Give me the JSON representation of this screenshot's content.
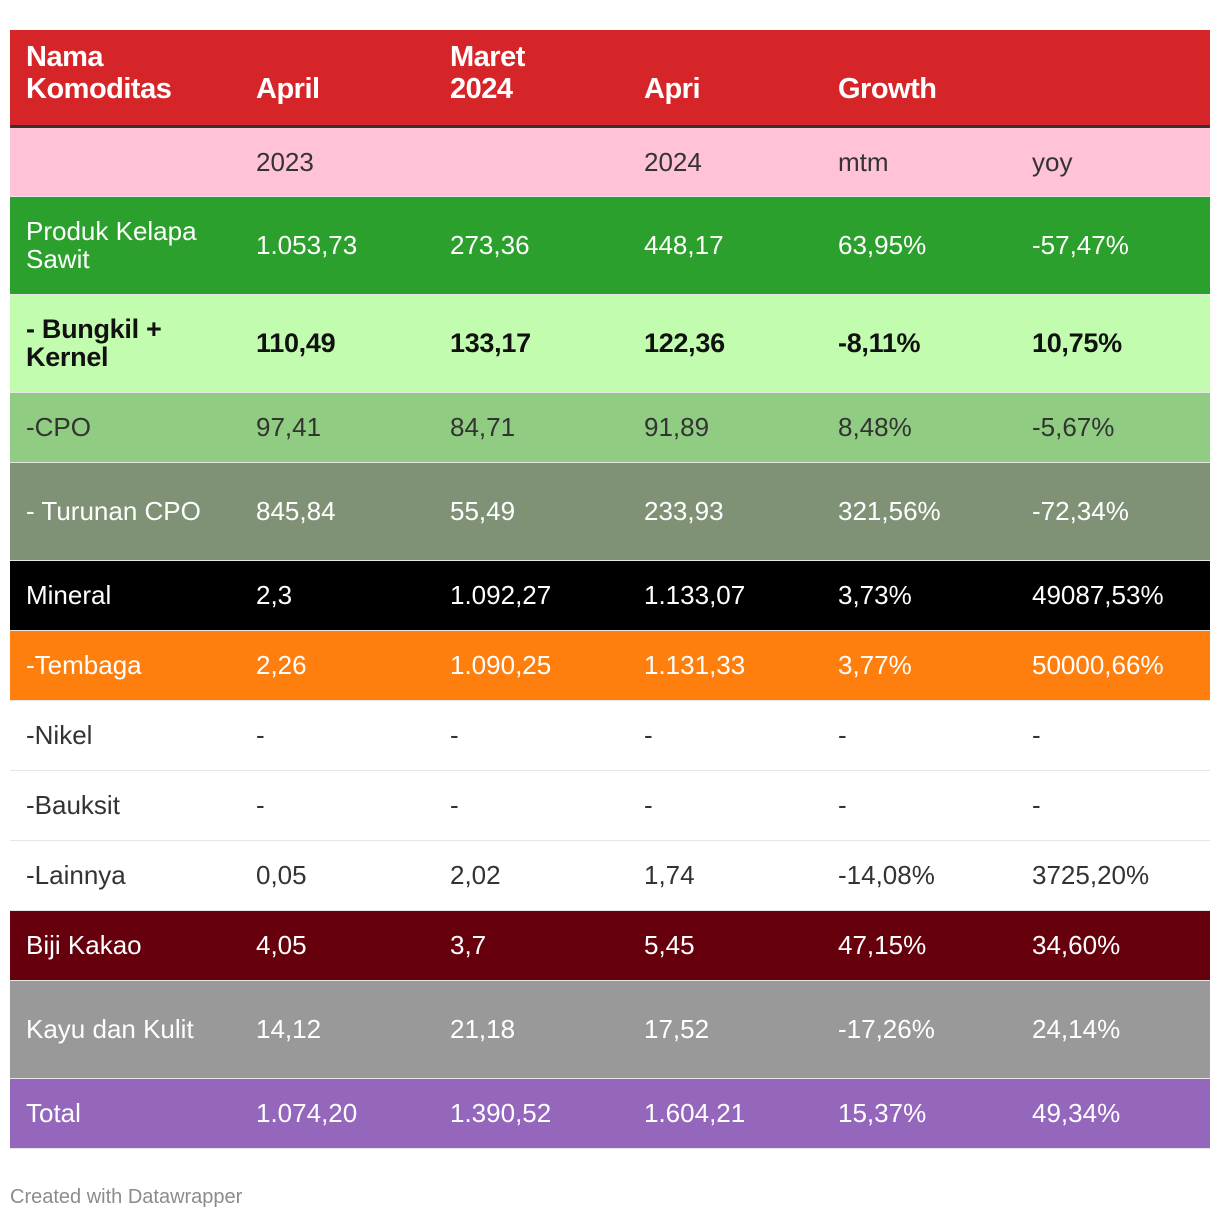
{
  "chart_data": {
    "type": "table",
    "columns": [
      [
        "Nama",
        "Komoditas"
      ],
      [
        "",
        "April"
      ],
      [
        "Maret",
        "2024"
      ],
      [
        "",
        "Apri"
      ],
      [
        "",
        "Growth"
      ],
      [
        "",
        ""
      ]
    ],
    "rows": [
      {
        "cells": [
          "",
          "2023",
          "",
          "2024",
          "mtm",
          "yoy"
        ],
        "bg": "#ffc2d6",
        "fg": "#333333",
        "bold": false,
        "height": 70
      },
      {
        "cells": [
          "Produk Kelapa Sawit",
          "1.053,73",
          "273,36",
          "448,17",
          "63,95%",
          "-57,47%"
        ],
        "bg": "#2ca02c",
        "fg": "#ffffff",
        "bold": false,
        "height": 98
      },
      {
        "cells": [
          "- Bungkil + Kernel",
          "110,49",
          "133,17",
          "122,36",
          "-8,11%",
          "10,75%"
        ],
        "bg": "#c2fcae",
        "fg": "#111111",
        "bold": true,
        "height": 98
      },
      {
        "cells": [
          "-CPO",
          "97,41",
          "84,71",
          "91,89",
          "8,48%",
          "-5,67%"
        ],
        "bg": "#90cc82",
        "fg": "#333333",
        "bold": false,
        "height": 70
      },
      {
        "cells": [
          "- Turunan CPO",
          "845,84",
          "55,49",
          "233,93",
          "321,56%",
          "-72,34%"
        ],
        "bg": "#7f9276",
        "fg": "#ffffff",
        "bold": false,
        "height": 98
      },
      {
        "cells": [
          "Mineral",
          "2,3",
          "1.092,27",
          "1.133,07",
          "3,73%",
          "49087,53%"
        ],
        "bg": "#000000",
        "fg": "#ffffff",
        "bold": false,
        "height": 70
      },
      {
        "cells": [
          "-Tembaga",
          "2,26",
          "1.090,25",
          "1.131,33",
          "3,77%",
          "50000,66%"
        ],
        "bg": "#ff7f0e",
        "fg": "#ffffff",
        "bold": false,
        "height": 70
      },
      {
        "cells": [
          "-Nikel",
          "-",
          "-",
          "-",
          "-",
          "-"
        ],
        "bg": "#ffffff",
        "fg": "#333333",
        "bold": false,
        "height": 70
      },
      {
        "cells": [
          "-Bauksit",
          "-",
          "-",
          "-",
          "-",
          "-"
        ],
        "bg": "#ffffff",
        "fg": "#333333",
        "bold": false,
        "height": 70
      },
      {
        "cells": [
          "-Lainnya",
          "0,05",
          "2,02",
          "1,74",
          "-14,08%",
          "3725,20%"
        ],
        "bg": "#ffffff",
        "fg": "#333333",
        "bold": false,
        "height": 70
      },
      {
        "cells": [
          "Biji Kakao",
          "4,05",
          "3,7",
          "5,45",
          "47,15%",
          "34,60%"
        ],
        "bg": "#67000d",
        "fg": "#ffffff",
        "bold": false,
        "height": 70
      },
      {
        "cells": [
          "Kayu dan Kulit",
          "14,12",
          "21,18",
          "17,52",
          "-17,26%",
          "24,14%"
        ],
        "bg": "#999999",
        "fg": "#ffffff",
        "bold": false,
        "height": 98
      },
      {
        "cells": [
          "Total",
          "1.074,20",
          "1.390,52",
          "1.604,21",
          "15,37%",
          "49,34%"
        ],
        "bg": "#9467bd",
        "fg": "#ffffff",
        "bold": false,
        "height": 70
      }
    ]
  },
  "footer": {
    "credit": "Created with Datawrapper"
  }
}
